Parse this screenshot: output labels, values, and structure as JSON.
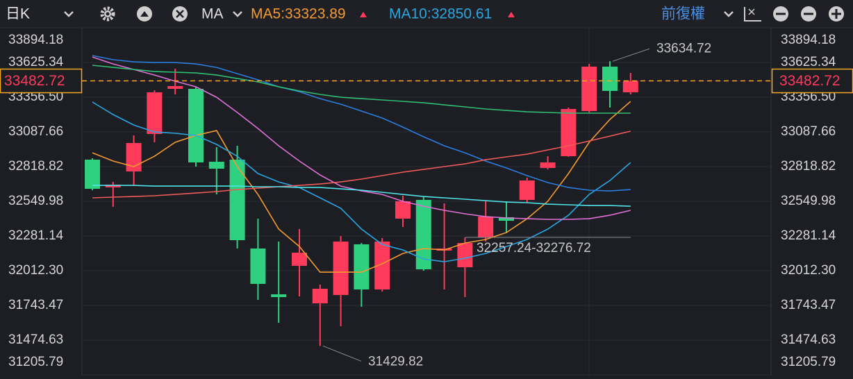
{
  "toolbar": {
    "period": "日K",
    "indicator": "MA",
    "adjust": "前復權"
  },
  "chart_data": {
    "type": "candlestick",
    "open": [
      32872.6,
      32657.5,
      32781.2,
      33071.5,
      33421.0,
      33421.0,
      32856.5,
      32872.6,
      32184.4,
      31829.5,
      32050.0,
      31759.6,
      31824.2,
      32216.7,
      31867.2,
      32415.6,
      32560.8,
      32168.3,
      32039.2,
      32270.4,
      32426.4,
      32560.8,
      32808.1,
      32899.5,
      33249.0,
      33593.1,
      33394.2
    ],
    "high": [
      32883.3,
      32700.5,
      33060.8,
      33410.3,
      33577.0,
      33437.2,
      32969.4,
      32980.1,
      32415.6,
      32238.1,
      32334.9,
      31904.8,
      32281.1,
      32227.4,
      32265.0,
      32593.0,
      32582.3,
      32533.9,
      32270.4,
      32550.0,
      32550.0,
      32732.8,
      32899.5,
      33275.9,
      33614.6,
      33634.72,
      33544.7
    ],
    "low": [
      32636.0,
      32507.0,
      32668.3,
      33007.0,
      33378.0,
      32818.8,
      32603.8,
      32184.4,
      31786.5,
      31609.0,
      31813.4,
      31429.82,
      31582.2,
      31732.7,
      31851.0,
      32351.1,
      32012.3,
      31867.2,
      31808.0,
      32238.1,
      32302.7,
      32539.3,
      32797.4,
      32894.1,
      33238.3,
      33275.9,
      33378.0
    ],
    "close": [
      32646.8,
      32679.0,
      33001.6,
      33394.2,
      33442.5,
      32851.1,
      32802.7,
      32248.9,
      31910.2,
      31808.0,
      32152.1,
      31872.5,
      32238.1,
      31867.2,
      32238.1,
      32550.0,
      32023.1,
      32184.4,
      32227.4,
      32431.7,
      32399.5,
      32711.3,
      32851.1,
      33265.1,
      33593.1,
      33404.9,
      33482.72
    ],
    "up_color": "#ff3b5c",
    "down_color": "#2fd07f",
    "lines": [
      {
        "name": "MA5:33323.89",
        "color": "#f39a32",
        "values": [
          32926,
          32862,
          32819,
          32899,
          33007,
          33060,
          33098,
          32819,
          32603,
          32335,
          32200,
          32001,
          32001,
          32001,
          32066,
          32146,
          32184,
          32173,
          32227,
          32254,
          32308,
          32415,
          32550,
          32765,
          33007,
          33184,
          33323.89
        ]
      },
      {
        "name": "MA10:32850.61",
        "color": "#2aa6e0",
        "values": [
          33319,
          33222,
          33141,
          33087,
          33077,
          33060,
          32991,
          32899,
          32765,
          32700,
          32657,
          32577,
          32496,
          32335,
          32216,
          32173,
          32103,
          32082,
          32109,
          32146,
          32200,
          32254,
          32335,
          32442,
          32603,
          32711,
          32850.61
        ]
      },
      {
        "color": "#e070d8",
        "values": [
          33668,
          33614,
          33571,
          33528,
          33480,
          33437,
          33356,
          33238,
          33114,
          32980,
          32862,
          32754,
          32668,
          32630,
          32603,
          32550,
          32512,
          32480,
          32453,
          32431,
          32421,
          32415,
          32410,
          32410,
          32415,
          32442,
          32480
        ]
      },
      {
        "color": "#2b7de0",
        "values": [
          33679,
          33647,
          33630,
          33625,
          33625,
          33614,
          33587,
          33539,
          33491,
          33437,
          33399,
          33345,
          33302,
          33249,
          33195,
          33125,
          33050,
          32980,
          32926,
          32862,
          32808,
          32749,
          32695,
          32657,
          32636,
          32630,
          32641
        ]
      },
      {
        "color": "#2fbf74",
        "values": [
          33604,
          33587,
          33571,
          33555,
          33550,
          33544,
          33528,
          33501,
          33475,
          33437,
          33405,
          33378,
          33356,
          33345,
          33335,
          33324,
          33313,
          33297,
          33281,
          33265,
          33254,
          33243,
          33238,
          33233,
          33233,
          33233,
          33233
        ]
      },
      {
        "color": "#f05a5a",
        "values": [
          32577,
          32582,
          32587,
          32593,
          32603,
          32614,
          32625,
          32641,
          32652,
          32663,
          32673,
          32684,
          32700,
          32722,
          32749,
          32776,
          32797,
          32819,
          32840,
          32872,
          32894,
          32915,
          32948,
          32980,
          33017,
          33055,
          33093
        ]
      },
      {
        "color": "#4fe3e8",
        "values": [
          32673,
          32673,
          32673,
          32668,
          32668,
          32668,
          32668,
          32668,
          32663,
          32663,
          32657,
          32657,
          32646,
          32636,
          32620,
          32603,
          32587,
          32577,
          32566,
          32555,
          32544,
          32539,
          32528,
          32523,
          32517,
          32517,
          32512
        ]
      }
    ],
    "ylim": [
      31205.79,
      33894.18
    ],
    "yticks": [
      31205.79,
      31474.63,
      31743.47,
      {
        "value": 32012.3,
        "label": "32012.30"
      },
      32281.14,
      32549.98,
      32818.82,
      33087.66,
      {
        "value": 33356.5,
        "label": "33356.50"
      },
      33625.34,
      33894.18
    ],
    "grid": true,
    "last_price": 33482.72,
    "max_value": 33634.72,
    "min_value": 31429.82,
    "range_label": "32257.24-32276.72"
  }
}
